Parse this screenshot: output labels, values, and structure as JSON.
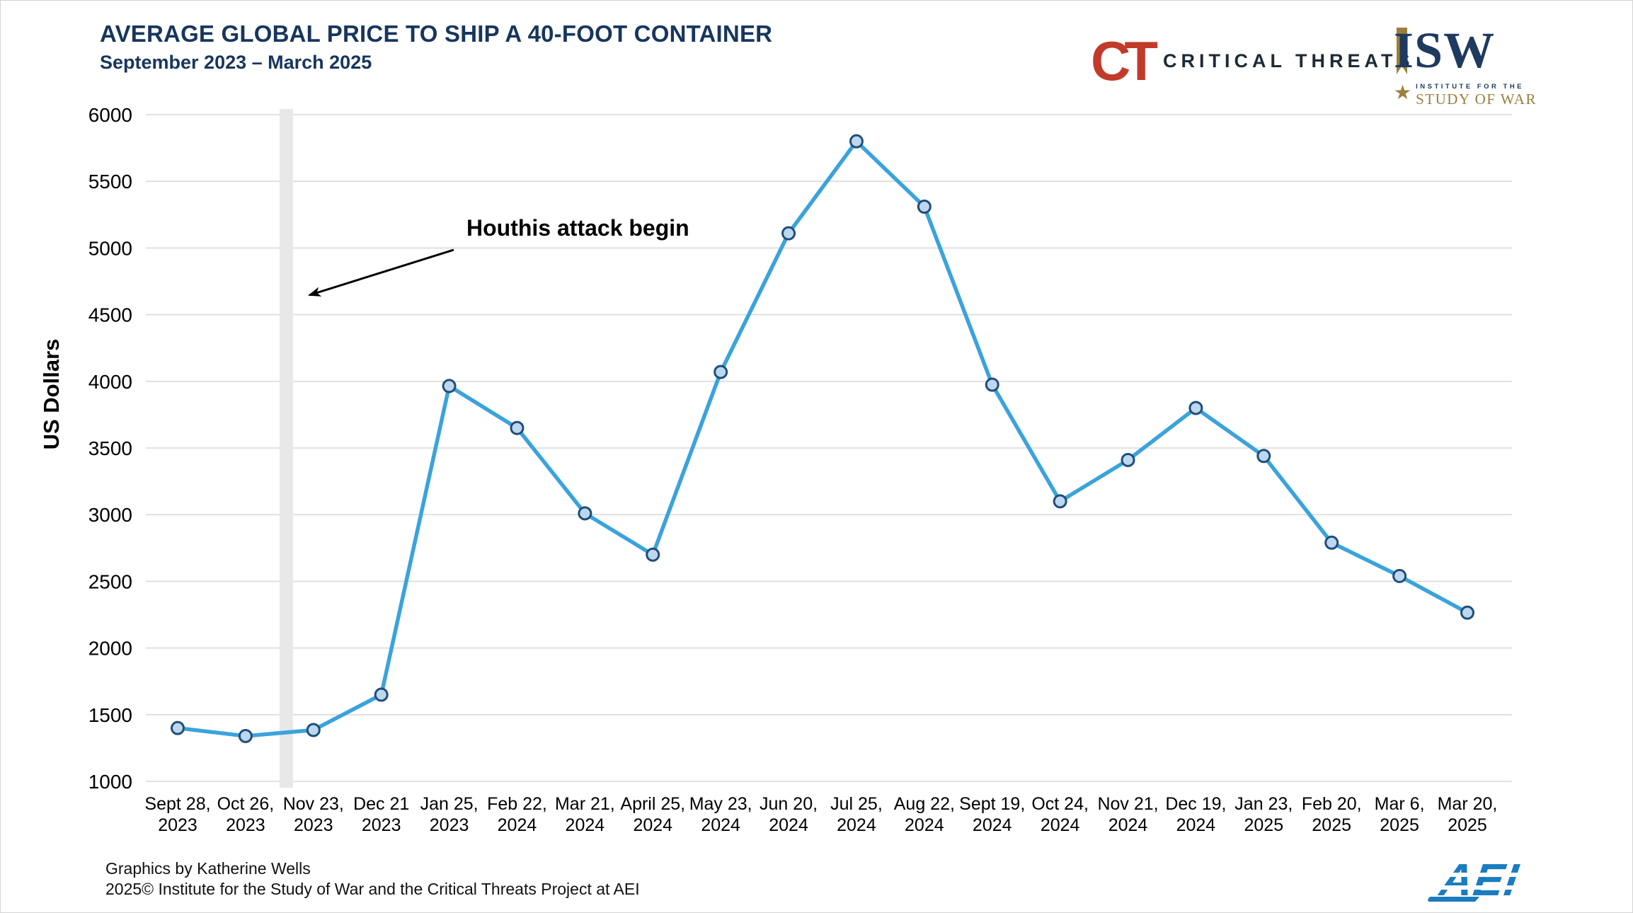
{
  "header": {
    "title": "AVERAGE GLOBAL PRICE TO SHIP A 40-FOOT CONTAINER",
    "subtitle": "September 2023 – March 2025"
  },
  "logos": {
    "critical_threats": {
      "monogram": "CT",
      "label": "CRITICAL THREATS"
    },
    "isw": {
      "acronym": "ISW",
      "star": "★",
      "line1": "INSTITUTE FOR THE",
      "line2": "STUDY OF WAR"
    },
    "aei": {
      "label": "AEI"
    }
  },
  "chart_data": {
    "type": "line",
    "title": "AVERAGE GLOBAL PRICE TO SHIP A 40-FOOT CONTAINER",
    "subtitle": "September 2023 – March 2025",
    "xlabel": "",
    "ylabel": "US Dollars",
    "ylim": [
      1000,
      6000
    ],
    "yticks": [
      1000,
      1500,
      2000,
      2500,
      3000,
      3500,
      4000,
      4500,
      5000,
      5500,
      6000
    ],
    "grid": true,
    "legend": "none",
    "categories": [
      "Sept 28,\n2023",
      "Oct 26,\n2023",
      "Nov 23,\n2023",
      "Dec 21\n2023",
      "Jan 25,\n2023",
      "Feb 22,\n2024",
      "Mar 21,\n2024",
      "April 25,\n2024",
      "May 23,\n2024",
      "Jun 20,\n2024",
      "Jul 25,\n2024",
      "Aug 22,\n2024",
      "Sept 19,\n2024",
      "Oct 24,\n2024",
      "Nov 21,\n2024",
      "Dec 19,\n2024",
      "Jan  23,\n2025",
      "Feb 20,\n2025",
      "Mar 6,\n2025",
      "Mar 20,\n2025"
    ],
    "values": [
      1400,
      1340,
      1385,
      1650,
      3965,
      3650,
      3010,
      2700,
      4070,
      5110,
      5800,
      5310,
      3975,
      3100,
      3410,
      3800,
      3440,
      2790,
      2540,
      2265
    ],
    "annotation": {
      "label": "Houthis attack begin",
      "band_between_categories": [
        "Oct 26, 2023",
        "Nov 23, 2023"
      ],
      "band_index": 1.6
    },
    "colors": {
      "line": "#3aa3dc",
      "marker_fill": "#bdd7ee",
      "marker_stroke": "#1f4e79",
      "grid": "#d9d9d9",
      "band": "#e8e8e8",
      "annotation": "#000000"
    }
  },
  "footer": {
    "line1": "Graphics by Katherine Wells",
    "line2": "2025© Institute for the Study of War and the Critical Threats Project at AEI"
  }
}
